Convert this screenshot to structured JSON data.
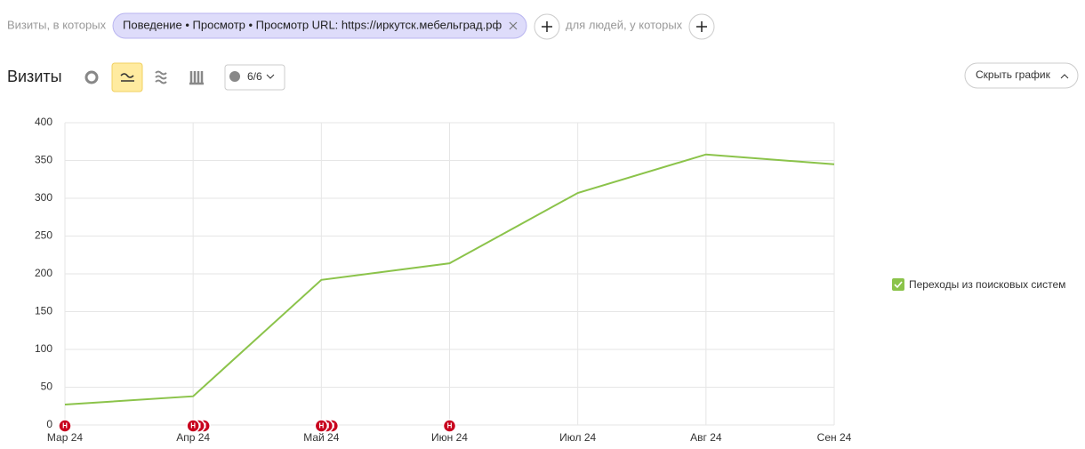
{
  "filter": {
    "label": "Визиты, в которых",
    "chip": "Поведение • Просмотр • Просмотр URL: https://иркутск.мебельград.рф",
    "people_label": "для людей, у которых"
  },
  "toolbar": {
    "title": "Визиты",
    "annotations_toggle": "6/6",
    "hide_chart": "Скрыть график"
  },
  "chart_data": {
    "type": "line",
    "categories": [
      "Мар 24",
      "Апр 24",
      "Май 24",
      "Июн 24",
      "Июл 24",
      "Авг 24",
      "Сен 24"
    ],
    "series": [
      {
        "name": "Переходы из поисковых систем",
        "color": "#8bc34a",
        "values": [
          27,
          38,
          192,
          214,
          307,
          358,
          345
        ]
      }
    ],
    "ylim": [
      0,
      400
    ],
    "yticks": [
      0,
      50,
      100,
      150,
      200,
      250,
      300,
      350,
      400
    ],
    "grid": true,
    "legend": "right",
    "annotation_label": "Н",
    "annotations": [
      {
        "x": "Мар 24",
        "count": 1
      },
      {
        "x": "Апр 24",
        "count": 3
      },
      {
        "x": "Май 24",
        "count": 3
      },
      {
        "x": "Июн 24",
        "count": 1
      }
    ]
  }
}
